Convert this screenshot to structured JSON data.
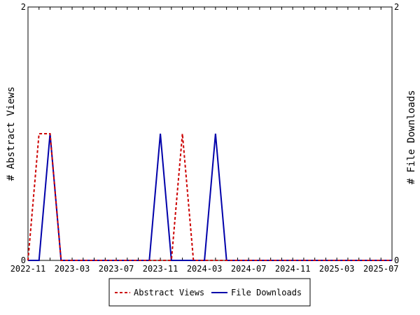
{
  "chart_data": {
    "type": "line",
    "x": [
      "2022-11",
      "2022-12",
      "2023-01",
      "2023-02",
      "2023-03",
      "2023-04",
      "2023-05",
      "2023-06",
      "2023-07",
      "2023-08",
      "2023-09",
      "2023-10",
      "2023-11",
      "2023-12",
      "2024-01",
      "2024-02",
      "2024-03",
      "2024-04",
      "2024-05",
      "2024-06",
      "2024-07",
      "2024-08",
      "2024-09",
      "2024-10",
      "2024-11",
      "2024-12",
      "2025-01",
      "2025-02",
      "2025-03",
      "2025-04",
      "2025-05",
      "2025-06",
      "2025-07",
      "2025-08"
    ],
    "x_ticks": [
      "2022-11",
      "2023-03",
      "2023-07",
      "2023-11",
      "2024-03",
      "2024-07",
      "2024-11",
      "2025-03",
      "2025-07"
    ],
    "series": [
      {
        "name": "Abstract Views",
        "axis": "left",
        "color": "#cc0000",
        "dash": true,
        "values": [
          0,
          1,
          1,
          0,
          0,
          0,
          0,
          0,
          0,
          0,
          0,
          0,
          0,
          0,
          1,
          0,
          0,
          0,
          0,
          0,
          0,
          0,
          0,
          0,
          0,
          0,
          0,
          0,
          0,
          0,
          0,
          0,
          0,
          0
        ]
      },
      {
        "name": "File Downloads",
        "axis": "right",
        "color": "#0000aa",
        "dash": false,
        "values": [
          0,
          0,
          1,
          0,
          0,
          0,
          0,
          0,
          0,
          0,
          0,
          0,
          1,
          0,
          0,
          0,
          0,
          1,
          0,
          0,
          0,
          0,
          0,
          0,
          0,
          0,
          0,
          0,
          0,
          0,
          0,
          0,
          0,
          0
        ]
      }
    ],
    "ylabel_left": "# Abstract Views",
    "ylabel_right": "# File Downloads",
    "ylim_left": [
      0,
      2
    ],
    "ylim_right": [
      0,
      2
    ],
    "y_ticks_left": [
      "0",
      "2"
    ],
    "y_ticks_right": [
      "0",
      "2"
    ],
    "grid": false,
    "legend_position": "bottom-center"
  }
}
